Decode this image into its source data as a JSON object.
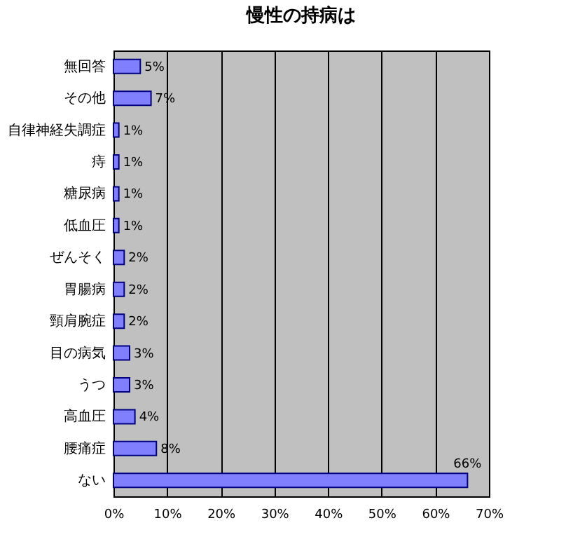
{
  "chart_data": {
    "type": "bar",
    "orientation": "horizontal",
    "title": "慢性の持病は",
    "categories": [
      "無回答",
      "その他",
      "自律神経失調症",
      "痔",
      "糖尿病",
      "低血圧",
      "ぜんそく",
      "胃腸病",
      "頸肩腕症",
      "目の病気",
      "うつ",
      "高血圧",
      "腰痛症",
      "ない"
    ],
    "values": [
      5,
      7,
      1,
      1,
      1,
      1,
      2,
      2,
      2,
      3,
      3,
      4,
      8,
      66
    ],
    "value_labels": [
      "5%",
      "7%",
      "1%",
      "1%",
      "1%",
      "1%",
      "2%",
      "2%",
      "2%",
      "3%",
      "3%",
      "4%",
      "8%",
      "66%"
    ],
    "color": "#8080ff",
    "xlim": [
      0,
      70
    ],
    "xticks": [
      {
        "value": 0,
        "label": "0%"
      },
      {
        "value": 10,
        "label": "10%"
      },
      {
        "value": 20,
        "label": "20%"
      },
      {
        "value": 30,
        "label": "30%"
      },
      {
        "value": 40,
        "label": "40%"
      },
      {
        "value": 50,
        "label": "50%"
      },
      {
        "value": 60,
        "label": "60%"
      },
      {
        "value": 70,
        "label": "70%"
      }
    ],
    "grid": "x"
  }
}
